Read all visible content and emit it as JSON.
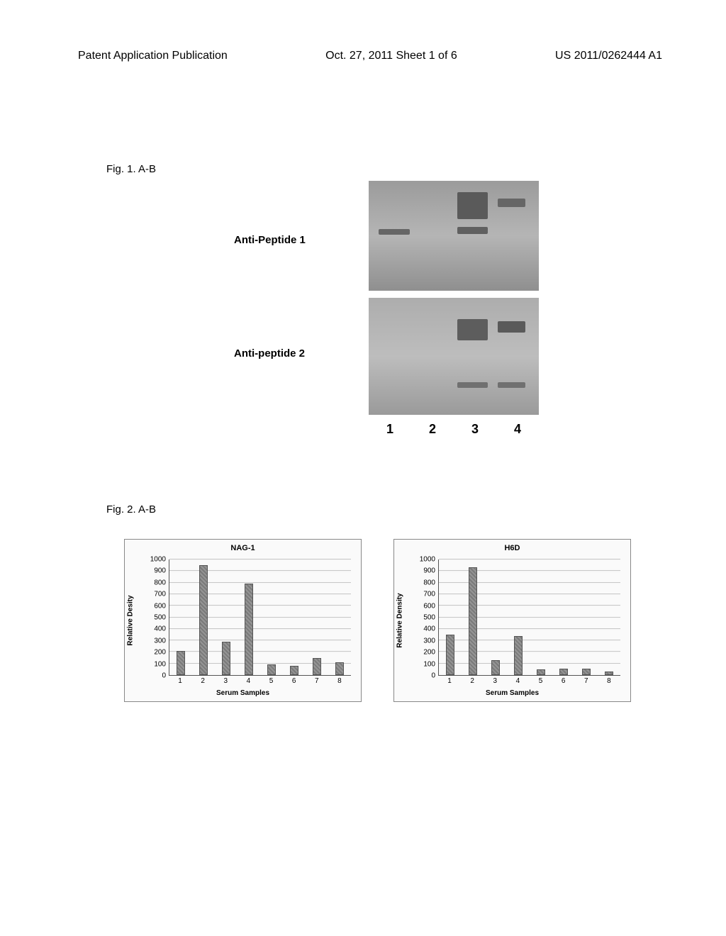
{
  "header": {
    "left": "Patent Application Publication",
    "mid": "Oct. 27, 2011  Sheet 1 of 6",
    "right": "US 2011/0262444 A1"
  },
  "fig1": {
    "label": "Fig. 1. A-B",
    "anti1": "Anti-Peptide 1",
    "anti2": "Anti-peptide 2",
    "lanes": [
      "1",
      "2",
      "3",
      "4"
    ]
  },
  "fig2": {
    "label": "Fig. 2. A-B"
  },
  "chartA": {
    "type": "bar",
    "title": "NAG-1",
    "xlabel": "Serum Samples",
    "ylabel": "Relative Desity",
    "ylim": [
      0,
      1000
    ],
    "ytick_step": 100,
    "categories": [
      "1",
      "2",
      "3",
      "4",
      "5",
      "6",
      "7",
      "8"
    ],
    "values": [
      210,
      950,
      290,
      790,
      90,
      80,
      150,
      110
    ],
    "bar_color": "#7a7a7a",
    "grid_color": "#c8c8c8",
    "background_color": "#fafafa",
    "title_fontsize": 11,
    "label_fontsize": 10
  },
  "chartB": {
    "type": "bar",
    "title": "H6D",
    "xlabel": "Serum Samples",
    "ylabel": "Relative Density",
    "ylim": [
      0,
      1000
    ],
    "ytick_step": 100,
    "categories": [
      "1",
      "2",
      "3",
      "4",
      "5",
      "6",
      "7",
      "8"
    ],
    "values": [
      350,
      930,
      130,
      340,
      50,
      55,
      55,
      30
    ],
    "bar_color": "#7a7a7a",
    "grid_color": "#c8c8c8",
    "background_color": "#fafafa",
    "title_fontsize": 11,
    "label_fontsize": 10
  }
}
